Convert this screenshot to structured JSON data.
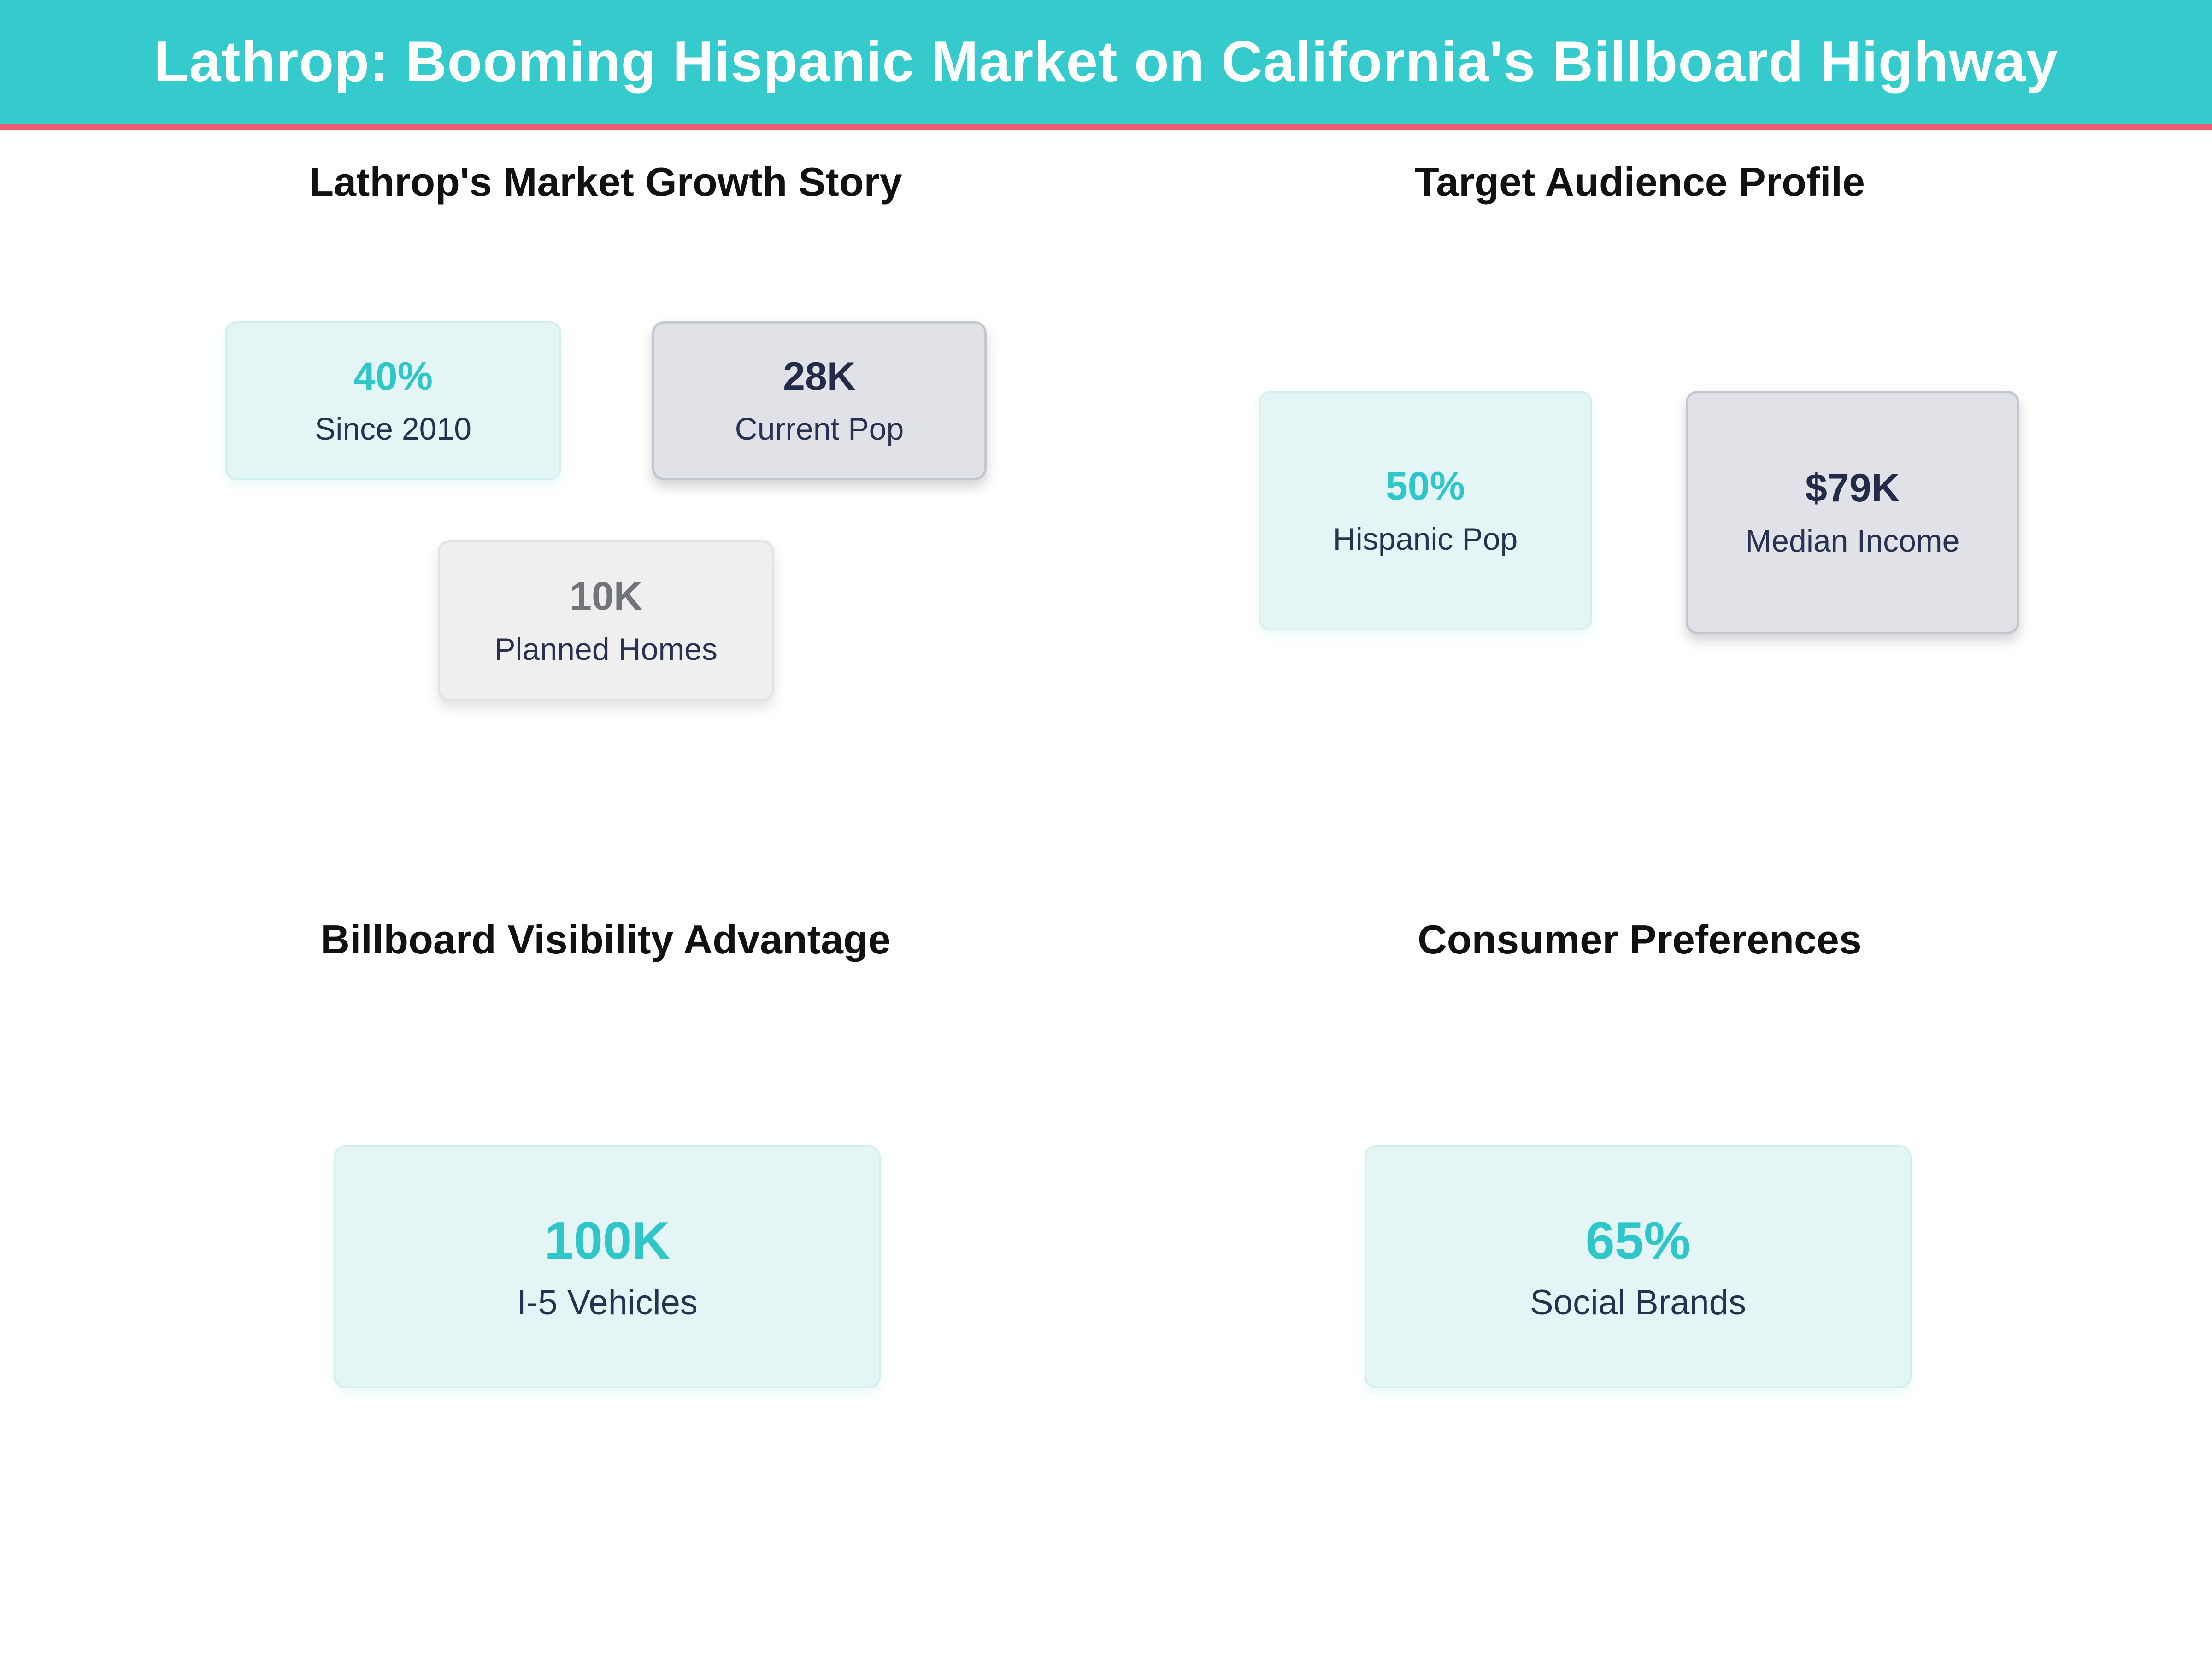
{
  "header": {
    "title": "Lathrop: Booming Hispanic Market on California's Billboard Highway",
    "background_color": "#35cbcd",
    "underline_color": "#ed5c72"
  },
  "palette": {
    "accent_teal": "#2ec6c8",
    "navy": "#222c49",
    "muted_gray_value": "#71757b",
    "teal_card_bg": "#e3f6f5",
    "gray_card_bg": "#e0e2e7",
    "light_gray_card_bg": "#efefef"
  },
  "sections": [
    {
      "title": "Lathrop's Market Growth Story",
      "cards": [
        {
          "value": "40%",
          "label": "Since 2010"
        },
        {
          "value": "28K",
          "label": "Current Pop"
        },
        {
          "value": "10K",
          "label": "Planned Homes"
        }
      ]
    },
    {
      "title": "Target Audience Profile",
      "cards": [
        {
          "value": "50%",
          "label": "Hispanic Pop"
        },
        {
          "value": "$79K",
          "label": "Median Income"
        }
      ]
    },
    {
      "title": "Billboard Visibility Advantage",
      "cards": [
        {
          "value": "100K",
          "label": "I-5 Vehicles"
        }
      ]
    },
    {
      "title": "Consumer Preferences",
      "cards": [
        {
          "value": "65%",
          "label": "Social Brands"
        }
      ]
    }
  ],
  "chart_data": {
    "type": "table",
    "title": "Lathrop: Booming Hispanic Market on California's Billboard Highway",
    "groups": [
      {
        "title": "Lathrop's Market Growth Story",
        "metrics": [
          {
            "value": "40%",
            "label": "Since 2010"
          },
          {
            "value": "28K",
            "label": "Current Pop"
          },
          {
            "value": "10K",
            "label": "Planned Homes"
          }
        ]
      },
      {
        "title": "Target Audience Profile",
        "metrics": [
          {
            "value": "50%",
            "label": "Hispanic Pop"
          },
          {
            "value": "$79K",
            "label": "Median Income"
          }
        ]
      },
      {
        "title": "Billboard Visibility Advantage",
        "metrics": [
          {
            "value": "100K",
            "label": "I-5 Vehicles"
          }
        ]
      },
      {
        "title": "Consumer Preferences",
        "metrics": [
          {
            "value": "65%",
            "label": "Social Brands"
          }
        ]
      }
    ]
  }
}
